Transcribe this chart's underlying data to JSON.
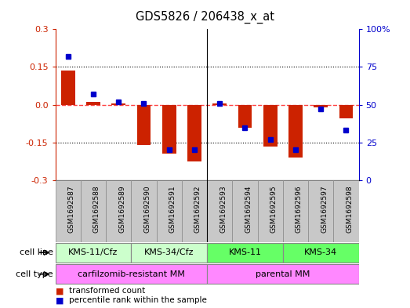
{
  "title": "GDS5826 / 206438_x_at",
  "samples": [
    "GSM1692587",
    "GSM1692588",
    "GSM1692589",
    "GSM1692590",
    "GSM1692591",
    "GSM1692592",
    "GSM1692593",
    "GSM1692594",
    "GSM1692595",
    "GSM1692596",
    "GSM1692597",
    "GSM1692598"
  ],
  "transformed_count": [
    0.135,
    0.01,
    0.005,
    -0.16,
    -0.195,
    -0.225,
    0.005,
    -0.09,
    -0.165,
    -0.21,
    -0.01,
    -0.055
  ],
  "percentile_rank": [
    82,
    57,
    52,
    51,
    20,
    20,
    51,
    35,
    27,
    20,
    47,
    33
  ],
  "ylim_left": [
    -0.3,
    0.3
  ],
  "ylim_right": [
    0,
    100
  ],
  "yticks_left": [
    -0.3,
    -0.15,
    0.0,
    0.15,
    0.3
  ],
  "yticks_right": [
    0,
    25,
    50,
    75,
    100
  ],
  "hlines_dotted": [
    0.15,
    -0.15
  ],
  "hline_dashed": 0.0,
  "cell_line_groups": [
    {
      "label": "KMS-11/Cfz",
      "start": 0,
      "end": 3,
      "color": "#CCFFCC"
    },
    {
      "label": "KMS-34/Cfz",
      "start": 3,
      "end": 6,
      "color": "#CCFFCC"
    },
    {
      "label": "KMS-11",
      "start": 6,
      "end": 9,
      "color": "#66FF66"
    },
    {
      "label": "KMS-34",
      "start": 9,
      "end": 12,
      "color": "#66FF66"
    }
  ],
  "cell_type_groups": [
    {
      "label": "carfilzomib-resistant MM",
      "start": 0,
      "end": 6,
      "color": "#FF88FF"
    },
    {
      "label": "parental MM",
      "start": 6,
      "end": 12,
      "color": "#FF88FF"
    }
  ],
  "sample_bg": "#C8C8C8",
  "bar_color": "#CC2200",
  "dot_color": "#0000CC",
  "background_color": "#ffffff",
  "zero_line_color": "#FF4444",
  "bar_width": 0.55,
  "legend_items": [
    {
      "label": "transformed count",
      "color": "#CC2200"
    },
    {
      "label": "percentile rank within the sample",
      "color": "#0000CC"
    }
  ]
}
